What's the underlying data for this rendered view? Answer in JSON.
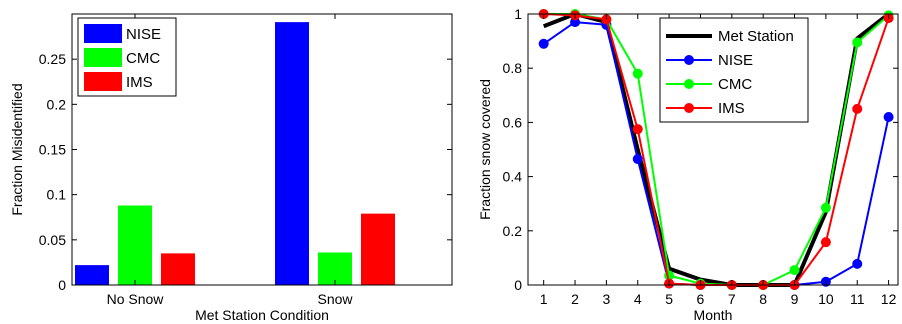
{
  "chart_data": [
    {
      "type": "bar",
      "xlabel": "Met Station Condition",
      "ylabel": "Fraction Misidentified",
      "categories": [
        "No Snow",
        "Snow"
      ],
      "ylim": [
        0,
        0.3
      ],
      "yticks": [
        0,
        0.05,
        0.1,
        0.15,
        0.2,
        0.25
      ],
      "ytick_labels": [
        "0",
        "0.05",
        "0.1",
        "0.15",
        "0.2",
        "0.25"
      ],
      "legend_position": "top-left",
      "series": [
        {
          "name": "NISE",
          "color": "#0000ff",
          "values": [
            0.022,
            0.291
          ]
        },
        {
          "name": "CMC",
          "color": "#00ff00",
          "values": [
            0.088,
            0.036
          ]
        },
        {
          "name": "IMS",
          "color": "#ff0000",
          "values": [
            0.035,
            0.079
          ]
        }
      ]
    },
    {
      "type": "line",
      "xlabel": "Month",
      "ylabel": "Fraction snow covered",
      "x": [
        1,
        2,
        3,
        4,
        5,
        6,
        7,
        8,
        9,
        10,
        11,
        12
      ],
      "xlim": [
        0.5,
        12.3
      ],
      "ylim": [
        0,
        1
      ],
      "yticks": [
        0,
        0.2,
        0.4,
        0.6,
        0.8,
        1
      ],
      "ytick_labels": [
        "0",
        "0.2",
        "0.4",
        "0.6",
        "0.8",
        "1"
      ],
      "legend_position": "top-right",
      "series": [
        {
          "name": "Met Station",
          "color": "#000000",
          "marker": false,
          "values": [
            0.955,
            1.0,
            0.97,
            0.5,
            0.06,
            0.02,
            0.0,
            0.0,
            0.0,
            0.27,
            0.91,
            1.0
          ]
        },
        {
          "name": "NISE",
          "color": "#0000ff",
          "marker": true,
          "values": [
            0.89,
            0.97,
            0.96,
            0.465,
            0.005,
            0.0,
            0.0,
            0.0,
            0.0,
            0.012,
            0.078,
            0.62
          ]
        },
        {
          "name": "CMC",
          "color": "#00ff00",
          "marker": true,
          "values": [
            1.0,
            1.0,
            0.98,
            0.78,
            0.035,
            0.005,
            0.0,
            0.0,
            0.055,
            0.285,
            0.895,
            0.995
          ]
        },
        {
          "name": "IMS",
          "color": "#ff0000",
          "marker": true,
          "values": [
            1.0,
            0.995,
            0.98,
            0.575,
            0.005,
            0.0,
            0.0,
            0.0,
            0.0,
            0.158,
            0.65,
            0.985
          ]
        }
      ]
    }
  ]
}
